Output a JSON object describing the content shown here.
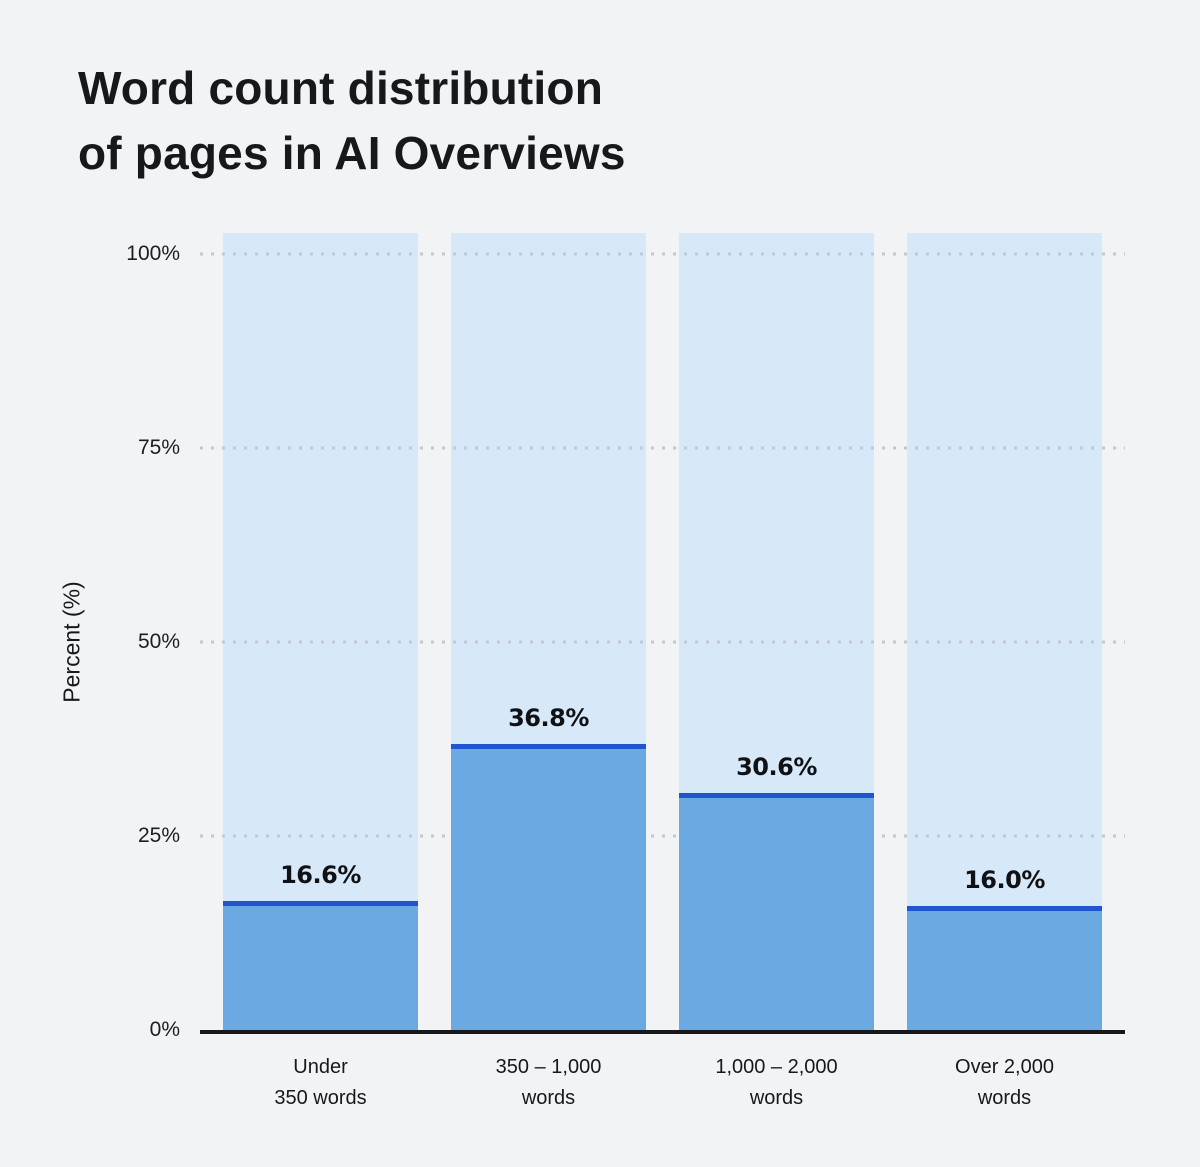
{
  "page": {
    "background": "#f1f3f5",
    "title_line1": "Word count distribution",
    "title_line2": "of pages in AI Overviews"
  },
  "chart_data": {
    "type": "bar",
    "title": "Word count distribution of pages in AI Overviews",
    "categories": [
      "Under 350 words",
      "350 – 1,000 words",
      "1,000 – 2,000 words",
      "Over 2,000 words"
    ],
    "categories_lines": [
      [
        "Under",
        "350 words"
      ],
      [
        "350 – 1,000",
        "words"
      ],
      [
        "1,000 – 2,000",
        "words"
      ],
      [
        "Over 2,000",
        "words"
      ]
    ],
    "values": [
      16.6,
      36.8,
      30.6,
      16.0
    ],
    "value_labels": [
      "16.6%",
      "36.8%",
      "30.6%",
      "16.0%"
    ],
    "xlabel": "",
    "ylabel": "Percent (%)",
    "ylim": [
      0,
      100
    ],
    "yticks": [
      {
        "value": 0,
        "label": "0%"
      },
      {
        "value": 25,
        "label": "25%"
      },
      {
        "value": 50,
        "label": "50%"
      },
      {
        "value": 75,
        "label": "75%"
      },
      {
        "value": 100,
        "label": "100%"
      }
    ],
    "grid": {
      "horizontal": true,
      "style": "dotted",
      "at": [
        25,
        50,
        75,
        100
      ]
    },
    "legend": "none",
    "bar_background_height_pct": 102.7,
    "colors": {
      "bar_fill": "#6aa9e1",
      "bar_top_border": "#2155d0",
      "bar_background": "#d7e8f8",
      "axis_line": "#17181a",
      "gridline": "#c4c9d0",
      "text": "#17181a",
      "page_background": "#f1f3f5"
    }
  }
}
